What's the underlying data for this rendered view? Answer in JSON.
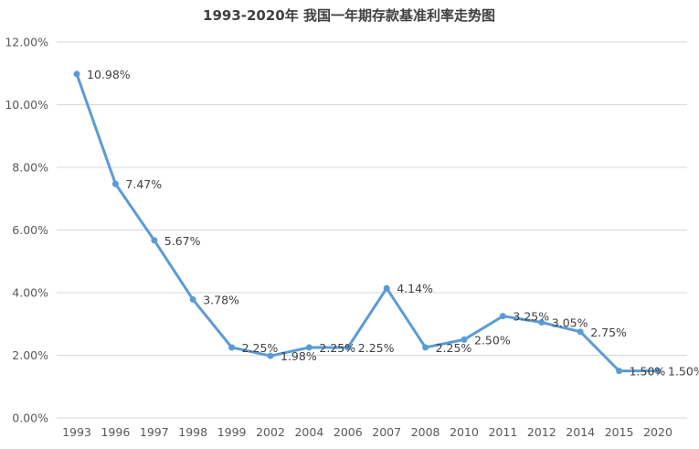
{
  "chart_data": {
    "type": "line",
    "title": "1993-2020年 我国一年期存款基准利率走势图",
    "xlabel": "",
    "ylabel": "",
    "categories": [
      "1993",
      "1996",
      "1997",
      "1998",
      "1999",
      "2002",
      "2004",
      "2006",
      "2007",
      "2008",
      "2010",
      "2011",
      "2012",
      "2014",
      "2015",
      "2020"
    ],
    "series": [
      {
        "values": [
          10.98,
          7.47,
          5.67,
          3.78,
          2.25,
          1.98,
          2.25,
          2.25,
          4.14,
          2.25,
          2.5,
          3.25,
          3.05,
          2.75,
          1.5,
          1.5
        ],
        "data_labels": [
          "10.98%",
          "7.47%",
          "5.67%",
          "3.78%",
          "2.25%",
          "1.98%",
          "2.25%",
          "2.25%",
          "4.14%",
          "2.25%",
          "2.50%",
          "3.25%",
          "3.05%",
          "2.75%",
          "1.50%",
          "1.50%"
        ]
      }
    ],
    "ylim": [
      0,
      12
    ],
    "y_ticks": [
      0,
      2,
      4,
      6,
      8,
      10,
      12
    ],
    "y_tick_labels": [
      "0.00%",
      "2.00%",
      "4.00%",
      "6.00%",
      "8.00%",
      "10.00%",
      "12.00%"
    ],
    "grid": true,
    "legend": "none",
    "colors": {
      "line": "#5b9bd5",
      "grid": "#d9d9d9",
      "text": "#595959"
    }
  }
}
